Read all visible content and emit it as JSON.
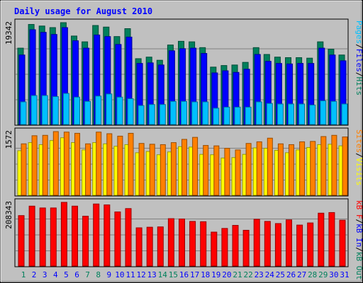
{
  "title": "Daily usage for August 2010",
  "colors": {
    "background": "#c0c0c0",
    "hits": "#00805c",
    "files": "#0000ff",
    "pages": "#00c0ff",
    "visits": "#ffff00",
    "sites": "#ff8000",
    "kb_in": "#ff0000",
    "kb_out": "#ff0000",
    "weekday": "#0000ff",
    "weekend": "#00805c"
  },
  "legend": {
    "top": [
      {
        "text": "Hits",
        "color": "#00805c"
      },
      {
        "text": "/",
        "color": "#000000"
      },
      {
        "text": "Files",
        "color": "#0000ff"
      },
      {
        "text": "/",
        "color": "#000000"
      },
      {
        "text": "Pages",
        "color": "#00c0ff"
      }
    ],
    "middle": [
      {
        "text": "Visits",
        "color": "#ffff00"
      },
      {
        "text": "/",
        "color": "#000000"
      },
      {
        "text": "Sites",
        "color": "#ff8000"
      }
    ],
    "bottom": [
      {
        "text": "kB Out",
        "color": "#00805c"
      },
      {
        "text": "/",
        "color": "#000000"
      },
      {
        "text": "kB In",
        "color": "#0000ff"
      },
      {
        "text": "/",
        "color": "#000000"
      },
      {
        "text": "kB F",
        "color": "#ff0000"
      }
    ]
  },
  "chart_data": {
    "type": "bar",
    "title": "Daily usage for August 2010",
    "categories": [
      "1",
      "2",
      "3",
      "4",
      "5",
      "6",
      "7",
      "8",
      "9",
      "10",
      "11",
      "12",
      "13",
      "14",
      "15",
      "16",
      "17",
      "18",
      "19",
      "20",
      "21",
      "22",
      "23",
      "24",
      "25",
      "26",
      "27",
      "28",
      "29",
      "30",
      "31"
    ],
    "weekend_days": [
      1,
      7,
      8,
      14,
      15,
      21,
      22,
      28,
      29
    ],
    "panels": [
      {
        "name": "hits-files-pages",
        "max_label": "19342",
        "ylim": [
          0,
          19342
        ],
        "series": [
          {
            "name": "Hits",
            "values": [
              14500,
              19000,
              18700,
              18400,
              19342,
              16800,
              15700,
              18800,
              18500,
              16700,
              18200,
              12500,
              12800,
              12200,
              15100,
              15800,
              15700,
              14600,
              10900,
              11200,
              11300,
              11800,
              14600,
              13300,
              12800,
              12700,
              12700,
              12600,
              15700,
              14300,
              13200
            ]
          },
          {
            "name": "Files",
            "values": [
              13200,
              18000,
              17500,
              17100,
              18400,
              15900,
              14500,
              17000,
              16700,
              15200,
              16600,
              11600,
              11700,
              11300,
              14000,
              14400,
              14500,
              13500,
              9800,
              10200,
              9900,
              10500,
              13300,
              12000,
              11600,
              11500,
              11600,
              11600,
              14500,
              13200,
              12100
            ]
          },
          {
            "name": "Pages",
            "values": [
              4300,
              5500,
              5500,
              5300,
              5900,
              5200,
              4400,
              5400,
              5800,
              5200,
              4900,
              3600,
              3800,
              3800,
              4400,
              4400,
              4300,
              4300,
              3100,
              3300,
              3300,
              3300,
              4300,
              4000,
              3900,
              3900,
              3900,
              3700,
              4500,
              4400,
              3900
            ]
          }
        ]
      },
      {
        "name": "visits-sites",
        "max_label": "1572",
        "ylim": [
          0,
          1572
        ],
        "series": [
          {
            "name": "Visits",
            "values": [
              1100,
              1300,
              1250,
              1350,
              1420,
              1300,
              1120,
              1300,
              1270,
              1210,
              1250,
              1050,
              1080,
              1000,
              1070,
              1200,
              1190,
              1010,
              1000,
              920,
              930,
              1010,
              1170,
              1160,
              1110,
              1050,
              1120,
              1180,
              1250,
              1260,
              1220
            ]
          },
          {
            "name": "Sites",
            "values": [
              1270,
              1470,
              1480,
              1572,
              1560,
              1530,
              1270,
              1560,
              1520,
              1460,
              1530,
              1280,
              1260,
              1250,
              1300,
              1380,
              1430,
              1230,
              1220,
              1160,
              1120,
              1280,
              1320,
              1410,
              1270,
              1250,
              1320,
              1330,
              1450,
              1480,
              1440
            ]
          }
        ]
      },
      {
        "name": "kbytes",
        "max_label": "208343",
        "ylim": [
          0,
          208343
        ],
        "series": [
          {
            "name": "kB F",
            "values": [
              165000,
              196000,
              190000,
              190000,
              208343,
              196000,
              163000,
              203000,
              200000,
              177000,
              188000,
              125000,
              127000,
              128000,
              155000,
              154000,
              146000,
              145000,
              111000,
              123000,
              133000,
              117000,
              153000,
              146000,
              139000,
              151000,
              134000,
              141000,
              173000,
              175000,
              150000
            ]
          }
        ]
      }
    ]
  }
}
